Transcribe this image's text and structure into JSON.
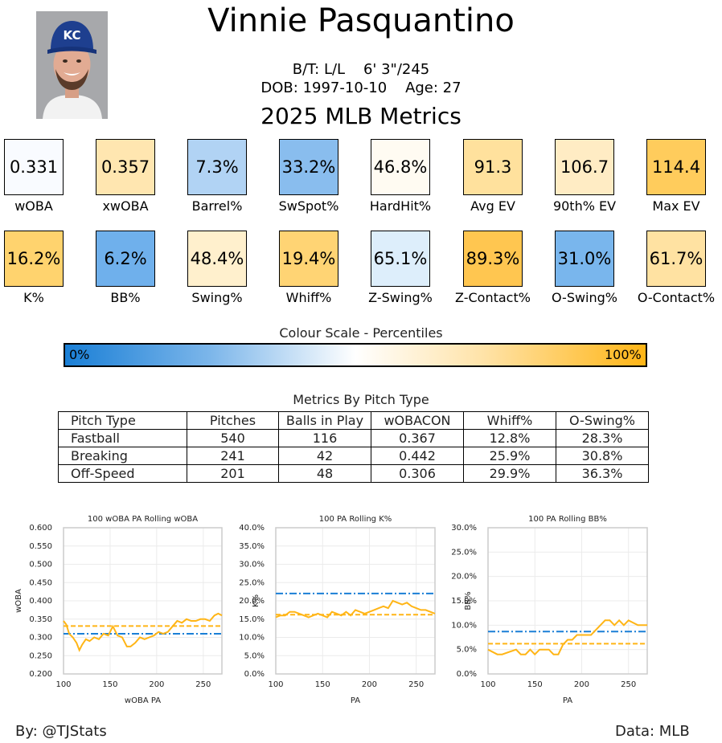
{
  "header": {
    "player_name": "Vinnie Pasquantino",
    "bt_height_weight": "B/T: L/L    6' 3\"/245",
    "dob_age": "DOB: 1997-10-10    Age: 27",
    "season_title": "2025 MLB Metrics"
  },
  "metrics_row1": [
    {
      "value": "0.331",
      "label": "wOBA",
      "color": "#f9fbff"
    },
    {
      "value": "0.357",
      "label": "xwOBA",
      "color": "#ffe6b0"
    },
    {
      "value": "7.3%",
      "label": "Barrel%",
      "color": "#b1d3f4"
    },
    {
      "value": "33.2%",
      "label": "SwSpot%",
      "color": "#89bdee"
    },
    {
      "value": "46.8%",
      "label": "HardHit%",
      "color": "#fffbf2"
    },
    {
      "value": "91.3",
      "label": "Avg EV",
      "color": "#ffe19d"
    },
    {
      "value": "106.7",
      "label": "90th% EV",
      "color": "#ffecc4"
    },
    {
      "value": "114.4",
      "label": "Max EV",
      "color": "#ffcc5c"
    }
  ],
  "metrics_row2": [
    {
      "value": "16.2%",
      "label": "K%",
      "color": "#ffd36e"
    },
    {
      "value": "6.2%",
      "label": "BB%",
      "color": "#6fb0ec"
    },
    {
      "value": "48.4%",
      "label": "Swing%",
      "color": "#fff0cd"
    },
    {
      "value": "19.4%",
      "label": "Whiff%",
      "color": "#ffd474"
    },
    {
      "value": "65.1%",
      "label": "Z-Swing%",
      "color": "#ddeefb"
    },
    {
      "value": "89.3%",
      "label": "Z-Contact%",
      "color": "#ffc650"
    },
    {
      "value": "31.0%",
      "label": "O-Swing%",
      "color": "#79b6ed"
    },
    {
      "value": "61.7%",
      "label": "O-Contact%",
      "color": "#ffe2a2"
    }
  ],
  "colour_scale": {
    "title": "Colour Scale - Percentiles",
    "min_label": "0%",
    "max_label": "100%",
    "low_color": "#1a7fd6",
    "high_color": "#ffb516"
  },
  "pitch_table": {
    "title": "Metrics By Pitch Type",
    "columns": [
      "Pitch Type",
      "Pitches",
      "Balls in Play",
      "wOBACON",
      "Whiff%",
      "O-Swing%"
    ],
    "rows": [
      [
        "Fastball",
        "540",
        "116",
        "0.367",
        "12.8%",
        "28.3%"
      ],
      [
        "Breaking",
        "241",
        "42",
        "0.442",
        "25.9%",
        "30.8%"
      ],
      [
        "Off-Speed",
        "201",
        "48",
        "0.306",
        "29.9%",
        "36.3%"
      ]
    ]
  },
  "footer": {
    "by": "By: @TJStats",
    "data": "Data: MLB"
  },
  "chart_data": [
    {
      "type": "line",
      "title": "100 wOBA PA Rolling wOBA",
      "xlabel": "wOBA PA",
      "ylabel": "wOBA",
      "xlim": [
        100,
        270
      ],
      "ylim": [
        0.2,
        0.6
      ],
      "xticks": [
        "100",
        "150",
        "200",
        "250"
      ],
      "yticks": [
        "0.200",
        "0.250",
        "0.300",
        "0.350",
        "0.400",
        "0.450",
        "0.500",
        "0.550",
        "0.600"
      ],
      "x": [
        100,
        103,
        106,
        110,
        114,
        117,
        120,
        124,
        128,
        133,
        138,
        143,
        148,
        153,
        158,
        163,
        168,
        172,
        177,
        182,
        187,
        192,
        197,
        202,
        207,
        212,
        217,
        222,
        227,
        232,
        237,
        242,
        247,
        252,
        257,
        262,
        266,
        270
      ],
      "series": [
        {
          "values": [
            0.345,
            0.335,
            0.31,
            0.3,
            0.285,
            0.265,
            0.28,
            0.295,
            0.29,
            0.3,
            0.295,
            0.31,
            0.305,
            0.33,
            0.305,
            0.3,
            0.275,
            0.275,
            0.285,
            0.3,
            0.295,
            0.3,
            0.305,
            0.315,
            0.31,
            0.315,
            0.33,
            0.345,
            0.34,
            0.35,
            0.345,
            0.345,
            0.35,
            0.35,
            0.345,
            0.36,
            0.365,
            0.36
          ],
          "color": "#ffb516",
          "style": "solid"
        }
      ],
      "reference_lines": [
        {
          "value": 0.331,
          "color": "#ffb516",
          "style": "dashed"
        },
        {
          "value": 0.31,
          "color": "#1a7fd6",
          "style": "dashdot"
        }
      ]
    },
    {
      "type": "line",
      "title": "100 PA Rolling K%",
      "xlabel": "PA",
      "ylabel": "K%",
      "xlim": [
        100,
        270
      ],
      "ylim": [
        0.0,
        0.4
      ],
      "xticks": [
        "100",
        "150",
        "200",
        "250"
      ],
      "yticks": [
        "0.0%",
        "5.0%",
        "10.0%",
        "15.0%",
        "20.0%",
        "25.0%",
        "30.0%",
        "35.0%",
        "40.0%"
      ],
      "x": [
        100,
        105,
        110,
        115,
        120,
        125,
        130,
        135,
        140,
        145,
        150,
        155,
        160,
        165,
        170,
        175,
        180,
        185,
        190,
        195,
        200,
        205,
        210,
        215,
        220,
        225,
        230,
        235,
        240,
        245,
        250,
        255,
        260,
        265,
        270
      ],
      "series": [
        {
          "values": [
            0.155,
            0.16,
            0.16,
            0.17,
            0.17,
            0.165,
            0.16,
            0.155,
            0.16,
            0.165,
            0.16,
            0.155,
            0.17,
            0.165,
            0.16,
            0.17,
            0.16,
            0.175,
            0.17,
            0.165,
            0.17,
            0.175,
            0.18,
            0.185,
            0.18,
            0.2,
            0.195,
            0.19,
            0.195,
            0.185,
            0.18,
            0.175,
            0.175,
            0.17,
            0.165
          ],
          "color": "#ffb516",
          "style": "solid"
        }
      ],
      "reference_lines": [
        {
          "value": 0.162,
          "color": "#ffb516",
          "style": "dashed"
        },
        {
          "value": 0.22,
          "color": "#1a7fd6",
          "style": "dashdot"
        }
      ]
    },
    {
      "type": "line",
      "title": "100 PA Rolling BB%",
      "xlabel": "PA",
      "ylabel": "BB%",
      "xlim": [
        100,
        270
      ],
      "ylim": [
        0.0,
        0.3
      ],
      "xticks": [
        "100",
        "150",
        "200",
        "250"
      ],
      "yticks": [
        "0.0%",
        "5.0%",
        "10.0%",
        "15.0%",
        "20.0%",
        "25.0%",
        "30.0%"
      ],
      "x": [
        100,
        110,
        115,
        130,
        135,
        140,
        145,
        150,
        155,
        160,
        165,
        170,
        175,
        180,
        185,
        190,
        195,
        200,
        210,
        215,
        220,
        225,
        230,
        235,
        240,
        245,
        250,
        260,
        270
      ],
      "series": [
        {
          "values": [
            0.05,
            0.04,
            0.04,
            0.05,
            0.04,
            0.04,
            0.05,
            0.04,
            0.05,
            0.05,
            0.05,
            0.04,
            0.04,
            0.06,
            0.07,
            0.07,
            0.08,
            0.08,
            0.08,
            0.09,
            0.1,
            0.11,
            0.11,
            0.1,
            0.11,
            0.1,
            0.11,
            0.1,
            0.1
          ],
          "color": "#ffb516",
          "style": "solid"
        }
      ],
      "reference_lines": [
        {
          "value": 0.062,
          "color": "#ffb516",
          "style": "dashed"
        },
        {
          "value": 0.087,
          "color": "#1a7fd6",
          "style": "dashdot"
        }
      ]
    }
  ]
}
